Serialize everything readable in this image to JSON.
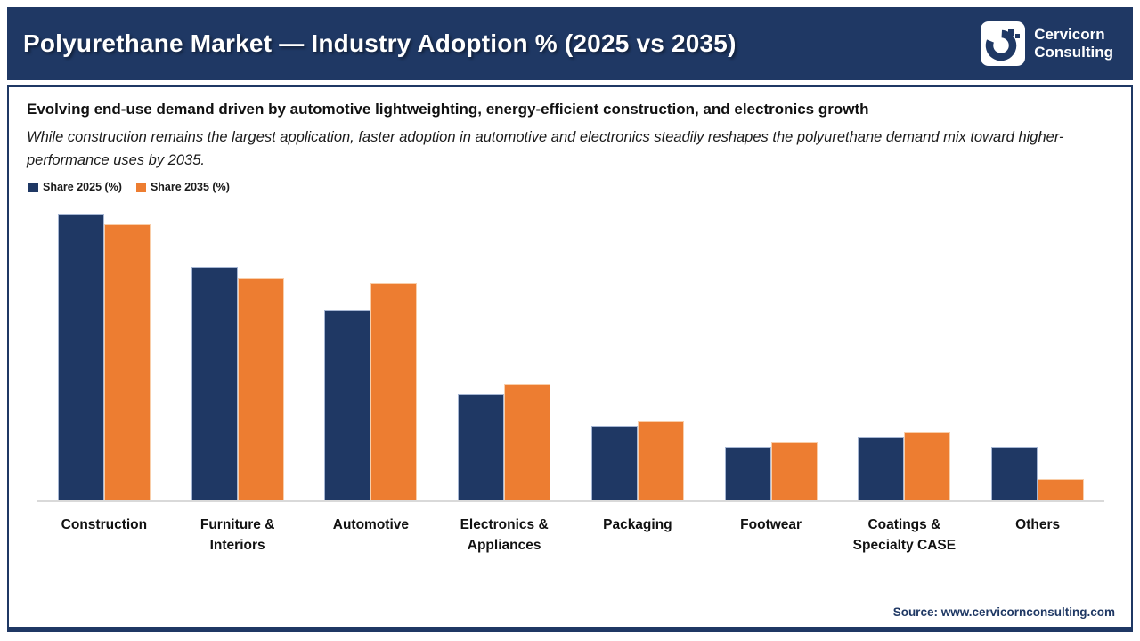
{
  "header": {
    "title": "Polyurethane Market — Industry Adoption % (2025 vs 2035)",
    "logo": {
      "line1": "Cervicorn",
      "line2": "Consulting"
    }
  },
  "summary": {
    "heading": "Evolving end-use demand driven by automotive lightweighting, energy-efficient construction, and electronics growth",
    "description": "While construction remains the largest application, faster adoption in automotive and electronics steadily reshapes the polyurethane demand mix toward higher-performance uses by 2035."
  },
  "chart_data": {
    "type": "bar",
    "title": "Polyurethane Market — Industry Adoption % (2025 vs 2035)",
    "categories": [
      "Construction",
      "Furniture & Interiors",
      "Automotive",
      "Electronics & Appliances",
      "Packaging",
      "Footwear",
      "Coatings & Specialty CASE",
      "Others"
    ],
    "series": [
      {
        "name": "Share 2025 (%)",
        "color": "#1f3864",
        "values": [
          27,
          22,
          18,
          10,
          7,
          5,
          6,
          5
        ]
      },
      {
        "name": "Share 2035 (%)",
        "color": "#ed7d31",
        "values": [
          26,
          21,
          20.5,
          11,
          7.5,
          5.5,
          6.5,
          2
        ]
      }
    ],
    "ylim": [
      0,
      29
    ],
    "grid": false,
    "axis_labels_visible": false,
    "legend_position": "top-left",
    "legend": [
      "Share 2025 (%)",
      "Share 2035 (%)"
    ]
  },
  "footer": {
    "source": "Source: www.cervicornconsulting.com"
  },
  "colors": {
    "header_bg": "#1f3864",
    "series_2025": "#1f3864",
    "series_2035": "#ed7d31",
    "axis_line": "#d9d9d9",
    "source_text": "#1f3864"
  }
}
